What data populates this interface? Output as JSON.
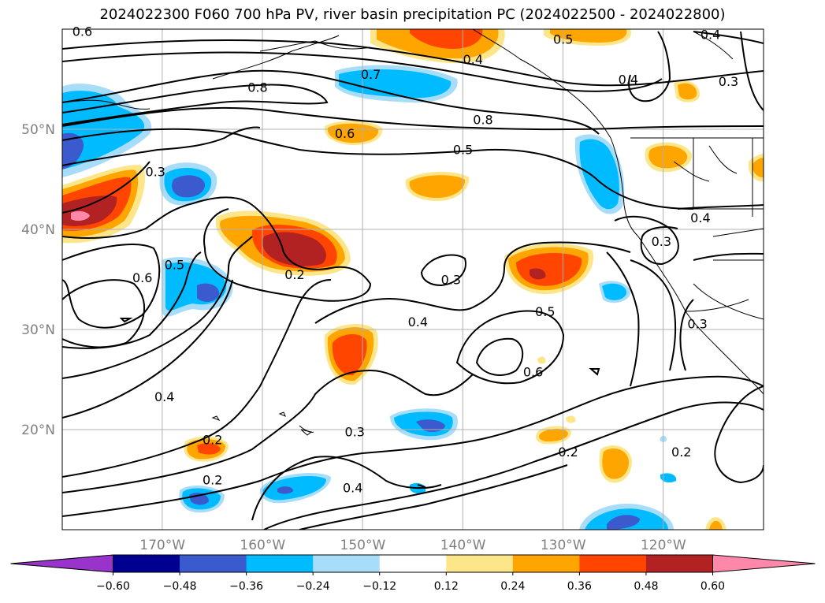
{
  "title": "2024022300 F060 700 hPa PV, river basin precipitation PC (2024022500 - 2024022800)",
  "chart_data": {
    "type": "contour",
    "title": "2024022300 F060 700 hPa PV, river basin precipitation PC (2024022500 - 2024022800)",
    "extent": {
      "lon": [
        -180,
        -110
      ],
      "lat": [
        10,
        60
      ]
    },
    "x_ticks": [
      {
        "value": -170,
        "label": "170°W"
      },
      {
        "value": -160,
        "label": "160°W"
      },
      {
        "value": -150,
        "label": "150°W"
      },
      {
        "value": -140,
        "label": "140°W"
      },
      {
        "value": -130,
        "label": "130°W"
      },
      {
        "value": -120,
        "label": "120°W"
      }
    ],
    "y_ticks": [
      {
        "value": 20,
        "label": "20°N"
      },
      {
        "value": 30,
        "label": "30°N"
      },
      {
        "value": 40,
        "label": "40°N"
      },
      {
        "value": 50,
        "label": "50°N"
      }
    ],
    "grid": true,
    "colorbar": {
      "levels": [
        -0.6,
        -0.48,
        -0.36,
        -0.24,
        -0.12,
        0.12,
        0.24,
        0.36,
        0.48,
        0.6
      ],
      "tick_labels": [
        "−0.60",
        "−0.48",
        "−0.36",
        "−0.24",
        "−0.12",
        "0.12",
        "0.24",
        "0.36",
        "0.48",
        "0.60"
      ],
      "colors": [
        "#9933cc",
        "#000090",
        "#3a5acd",
        "#00bbff",
        "#a8ddfa",
        "#ffffff",
        "#fde68a",
        "#ffa500",
        "#ff4500",
        "#b22222",
        "#ff88aa"
      ],
      "extend": "both"
    },
    "contour_labels": [
      {
        "text": "0.6",
        "lon": -178.0,
        "lat": 59.8
      },
      {
        "text": "0.8",
        "lon": -160.5,
        "lat": 54.2
      },
      {
        "text": "0.7",
        "lon": -149.2,
        "lat": 55.5
      },
      {
        "text": "0.4",
        "lon": -139.0,
        "lat": 57.0
      },
      {
        "text": "0.5",
        "lon": -130.0,
        "lat": 59.0
      },
      {
        "text": "0.4",
        "lon": -115.3,
        "lat": 59.5
      },
      {
        "text": "0.4",
        "lon": -123.5,
        "lat": 55.0
      },
      {
        "text": "0.3",
        "lon": -113.5,
        "lat": 54.8
      },
      {
        "text": "0.8",
        "lon": -138.0,
        "lat": 51.0
      },
      {
        "text": "0.6",
        "lon": -151.8,
        "lat": 49.6
      },
      {
        "text": "0.5",
        "lon": -140.0,
        "lat": 48.0
      },
      {
        "text": "0.3",
        "lon": -170.7,
        "lat": 45.8
      },
      {
        "text": "0.4",
        "lon": -116.3,
        "lat": 41.2
      },
      {
        "text": "0.3",
        "lon": -120.2,
        "lat": 38.8
      },
      {
        "text": "0.5",
        "lon": -168.8,
        "lat": 36.5
      },
      {
        "text": "0.6",
        "lon": -172.0,
        "lat": 35.2
      },
      {
        "text": "0.2",
        "lon": -156.8,
        "lat": 35.5
      },
      {
        "text": "0.3",
        "lon": -141.2,
        "lat": 35.0
      },
      {
        "text": "0.5",
        "lon": -131.8,
        "lat": 31.8
      },
      {
        "text": "0.4",
        "lon": -144.5,
        "lat": 30.8
      },
      {
        "text": "0.3",
        "lon": -116.6,
        "lat": 30.6
      },
      {
        "text": "0.6",
        "lon": -133.0,
        "lat": 25.8
      },
      {
        "text": "0.4",
        "lon": -169.8,
        "lat": 23.3
      },
      {
        "text": "0.3",
        "lon": -150.8,
        "lat": 19.8
      },
      {
        "text": "0.2",
        "lon": -165.0,
        "lat": 19.0
      },
      {
        "text": "0.2",
        "lon": -129.5,
        "lat": 17.8
      },
      {
        "text": "0.2",
        "lon": -118.2,
        "lat": 17.8
      },
      {
        "text": "0.2",
        "lon": -165.0,
        "lat": 15.0
      },
      {
        "text": "0.4",
        "lon": -151.0,
        "lat": 14.2
      }
    ]
  }
}
